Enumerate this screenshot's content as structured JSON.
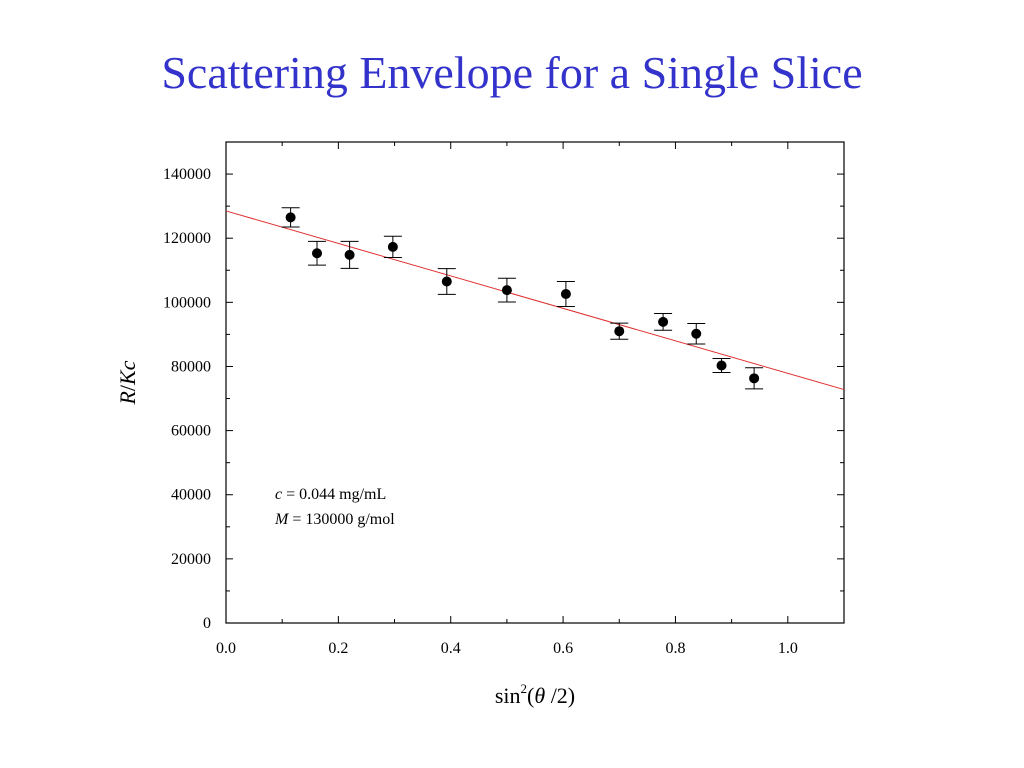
{
  "slide": {
    "title": "Scattering Envelope for a Single Slice"
  },
  "chart_data": {
    "type": "scatter",
    "title": "Scattering Envelope for a Single Slice",
    "x_axis": {
      "label_base": "sin",
      "label_superscript": "2",
      "label_open": "(",
      "label_var": "θ",
      "label_rest": " /2)",
      "range": [
        0.0,
        1.1
      ],
      "ticks": [
        0.0,
        0.2,
        0.4,
        0.6,
        0.8,
        1.0
      ],
      "tick_labels": [
        "0.0",
        "0.2",
        "0.4",
        "0.6",
        "0.8",
        "1.0"
      ]
    },
    "y_axis": {
      "label": "R/Kc",
      "label_italic_parts": [
        "R",
        "/",
        "Kc"
      ],
      "range": [
        0,
        150000
      ],
      "ticks": [
        0,
        20000,
        40000,
        60000,
        80000,
        100000,
        120000,
        140000
      ],
      "tick_labels": [
        "0",
        "20000",
        "40000",
        "60000",
        "80000",
        "100000",
        "120000",
        "140000"
      ]
    },
    "grid": false,
    "points": [
      {
        "x": 0.115,
        "y": 126500,
        "err": 3000
      },
      {
        "x": 0.162,
        "y": 115300,
        "err": 3700
      },
      {
        "x": 0.22,
        "y": 114800,
        "err": 4200
      },
      {
        "x": 0.297,
        "y": 117300,
        "err": 3300
      },
      {
        "x": 0.393,
        "y": 106500,
        "err": 4000
      },
      {
        "x": 0.5,
        "y": 103800,
        "err": 3700
      },
      {
        "x": 0.605,
        "y": 102600,
        "err": 3900
      },
      {
        "x": 0.7,
        "y": 91000,
        "err": 2500
      },
      {
        "x": 0.778,
        "y": 93900,
        "err": 2600
      },
      {
        "x": 0.837,
        "y": 90200,
        "err": 3200
      },
      {
        "x": 0.882,
        "y": 80300,
        "err": 2200
      },
      {
        "x": 0.94,
        "y": 76300,
        "err": 3300
      }
    ],
    "fit_line": {
      "x": [
        0.0,
        1.1
      ],
      "y": [
        128500,
        72800
      ],
      "color": "#e03030"
    },
    "annotation": {
      "line1_var": "c",
      "line1_rest": " = 0.044 mg/mL",
      "line2_var": "M",
      "line2_rest": " = 130000 g/mol"
    }
  },
  "colors": {
    "title": "#3333cc",
    "fit": "#e03030",
    "points": "#000000"
  }
}
